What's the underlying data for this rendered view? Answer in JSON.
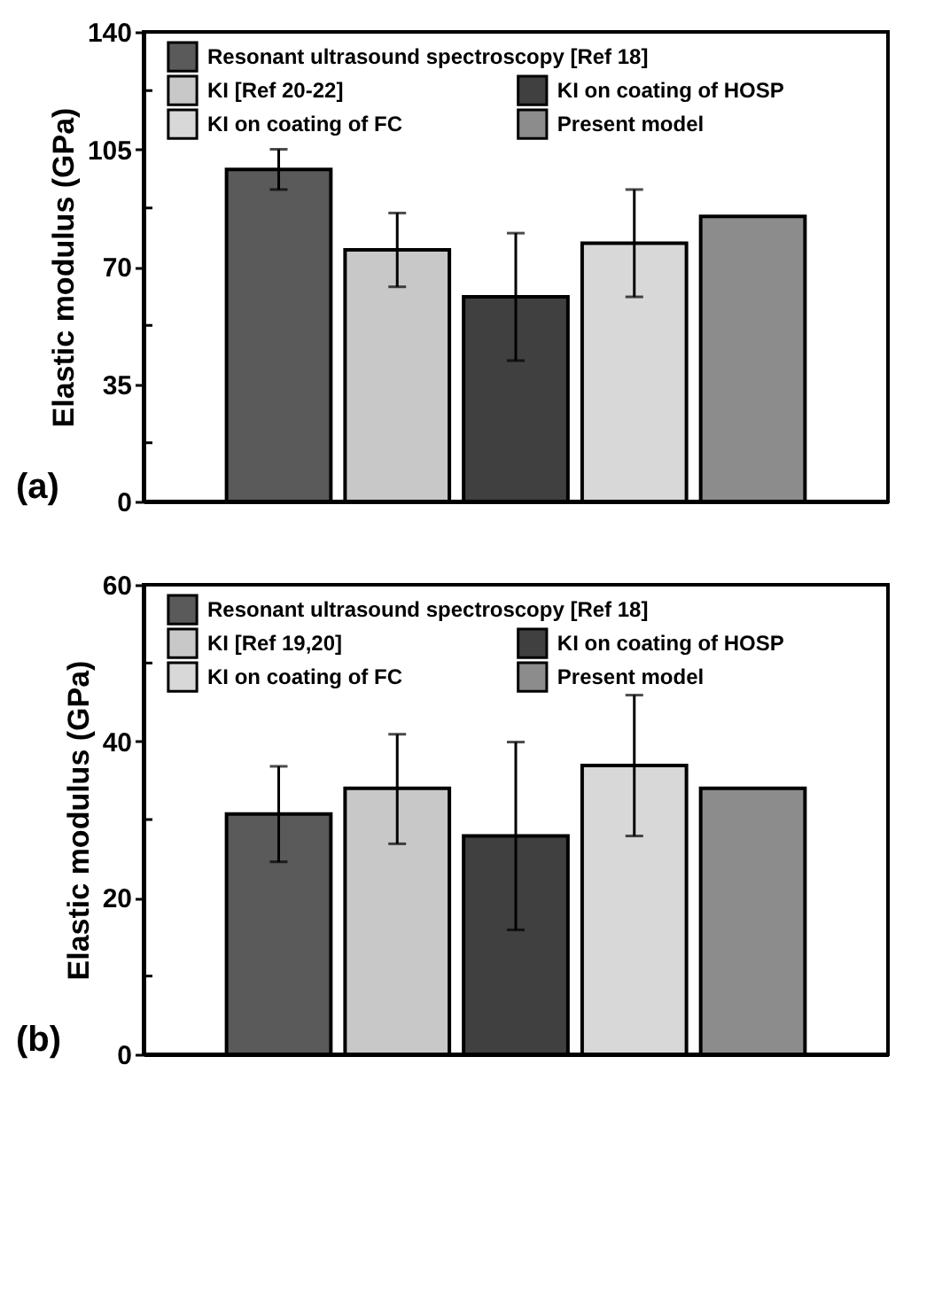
{
  "chart_data": [
    {
      "type": "bar",
      "ylabel": "Elastic modulus (GPa)",
      "annotations": [
        "(a)"
      ],
      "categories": [
        null,
        null,
        null,
        null,
        null
      ],
      "series": [
        {
          "name": "Resonant ultrasound spectroscopy [Ref 18]",
          "color": "#5a5a5a",
          "values": [
            99,
            null,
            null,
            null,
            null
          ],
          "errors": [
            [
              93,
              105
            ],
            null,
            null,
            null,
            null
          ]
        },
        {
          "name": "KI [Ref  20-22]",
          "color": "#c8c8c8",
          "values": [
            null,
            75,
            null,
            null,
            null
          ],
          "errors": [
            null,
            [
              64,
              86
            ],
            null,
            null,
            null
          ]
        },
        {
          "name": "KI on coating of HOSP",
          "color": "#404040",
          "values": [
            null,
            null,
            61,
            null,
            null
          ],
          "errors": [
            null,
            null,
            [
              42,
              80
            ],
            null,
            null
          ]
        },
        {
          "name": "KI on coating of FC",
          "color": "#d8d8d8",
          "values": [
            null,
            null,
            null,
            77,
            null
          ],
          "errors": [
            null,
            null,
            null,
            [
              61,
              93
            ],
            null
          ]
        },
        {
          "name": "Present model",
          "color": "#8c8c8c",
          "values": [
            null,
            null,
            null,
            null,
            85
          ]
        }
      ],
      "ylim": [
        0,
        140
      ],
      "yticks": [
        0,
        {
          "value": 17.5,
          "label": null
        },
        35,
        {
          "value": 52.5,
          "label": null
        },
        70,
        {
          "value": 87.5,
          "label": null
        },
        105,
        {
          "value": 122.5,
          "label": null
        },
        140
      ],
      "grid": false,
      "legend": "top",
      "tick_labels": "y"
    },
    {
      "type": "bar",
      "ylabel": "Elastic modulus (GPa)",
      "annotations": [
        "(b)"
      ],
      "categories": [
        null,
        null,
        null,
        null,
        null
      ],
      "series": [
        {
          "name": "Resonant ultrasound spectroscopy [Ref  18]",
          "color": "#5a5a5a",
          "values": [
            30.7,
            null,
            null,
            null,
            null
          ],
          "errors": [
            [
              24.6,
              36.8
            ],
            null,
            null,
            null,
            null
          ]
        },
        {
          "name": "KI [Ref  19,20]",
          "color": "#c8c8c8",
          "values": [
            null,
            34,
            null,
            null,
            null
          ],
          "errors": [
            null,
            [
              26.9,
              40.9
            ],
            null,
            null,
            null
          ]
        },
        {
          "name": "KI on coating of HOSP",
          "color": "#404040",
          "values": [
            null,
            null,
            27.9,
            null,
            null
          ],
          "errors": [
            null,
            null,
            [
              15.9,
              39.9
            ],
            null,
            null
          ]
        },
        {
          "name": "KI on coating of FC",
          "color": "#d8d8d8",
          "values": [
            null,
            null,
            null,
            36.9,
            null
          ],
          "errors": [
            null,
            null,
            null,
            [
              27.9,
              45.9
            ],
            null
          ]
        },
        {
          "name": "Present model",
          "color": "#8c8c8c",
          "values": [
            null,
            null,
            null,
            null,
            34
          ]
        }
      ],
      "ylim": [
        0,
        60
      ],
      "yticks": [
        0,
        {
          "value": 10,
          "label": null
        },
        20,
        {
          "value": 30,
          "label": null
        },
        40,
        {
          "value": 50,
          "label": null
        },
        60
      ],
      "grid": false,
      "legend": "top",
      "tick_labels": "y"
    }
  ]
}
